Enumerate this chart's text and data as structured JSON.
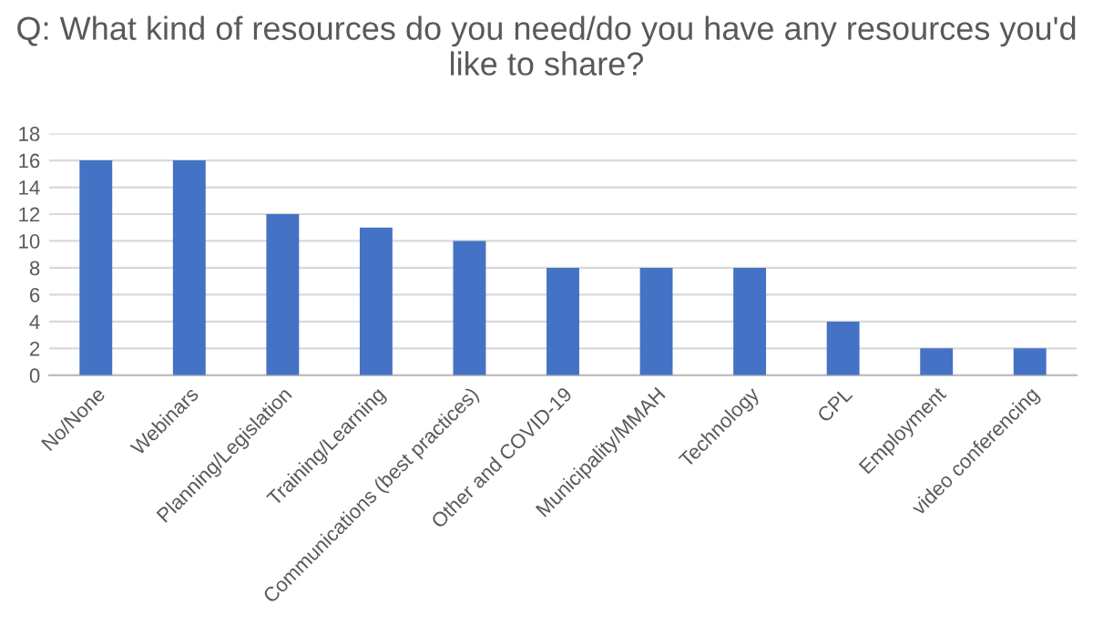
{
  "chart_data": {
    "type": "bar",
    "title": "Q: What kind of resources do you need/do you have any resources you'd like to share?",
    "categories": [
      "No/None",
      "Webinars",
      "Planning/Legislation",
      "Training/Learning",
      "Communications (best practices)",
      "Other and COVID-19",
      "Municipality/MMAH",
      "Technology",
      "CPL",
      "Employment",
      "video conferencing"
    ],
    "values": [
      16,
      16,
      12,
      11,
      10,
      8,
      8,
      8,
      4,
      2,
      2
    ],
    "color": "#4472c4",
    "ylim": [
      0,
      18
    ],
    "yticks": [
      0,
      2,
      4,
      6,
      8,
      10,
      12,
      14,
      16,
      18
    ],
    "grid": "y"
  }
}
